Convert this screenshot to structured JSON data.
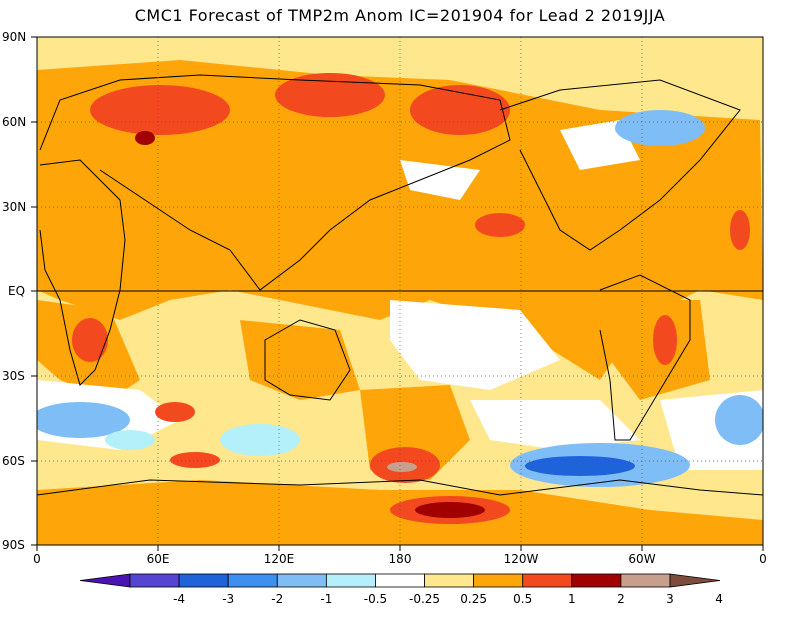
{
  "title": "CMC1 Forecast of TMP2m Anom IC=201904 for Lead 2 2019JJA",
  "lat_labels": [
    "90N",
    "60N",
    "30N",
    "EQ",
    "30S",
    "60S",
    "90S"
  ],
  "lon_labels": [
    "0",
    "60E",
    "120E",
    "180",
    "120W",
    "60W",
    "0"
  ],
  "colorbar": {
    "labels": [
      "-4",
      "-3",
      "-2",
      "-1",
      "-0.5",
      "-0.25",
      "0.25",
      "0.5",
      "1",
      "2",
      "3",
      "4"
    ],
    "colors": [
      "#4b13b0",
      "#5446d1",
      "#1e64d8",
      "#3e90f0",
      "#7fbdf7",
      "#b4f0f9",
      "#ffffff",
      "#fee78c",
      "#fea50a",
      "#f3491e",
      "#a00000",
      "#c7a08d",
      "#7d4c3c"
    ]
  },
  "map": {
    "projection": "cylindrical equidistant",
    "lon_range": [
      0,
      360
    ],
    "lat_range": [
      -90,
      90
    ],
    "units": "degC",
    "equator_line": true,
    "gridlines": "dotted every 30 degrees"
  }
}
